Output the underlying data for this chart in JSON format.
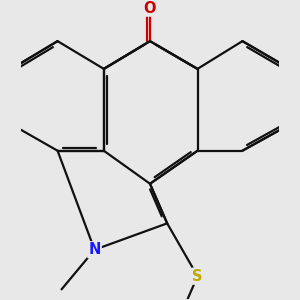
{
  "bg_color": "#e8e8e8",
  "bond_color": "#111111",
  "bond_width": 1.6,
  "figsize": [
    3.0,
    3.0
  ],
  "dpi": 100,
  "xlim": [
    -2.8,
    2.8
  ],
  "ylim": [
    -3.2,
    3.0
  ],
  "O_color": "#cc0000",
  "N_color": "#1a1aff",
  "S_color": "#bbaa00",
  "label_fontsize": 10.5
}
